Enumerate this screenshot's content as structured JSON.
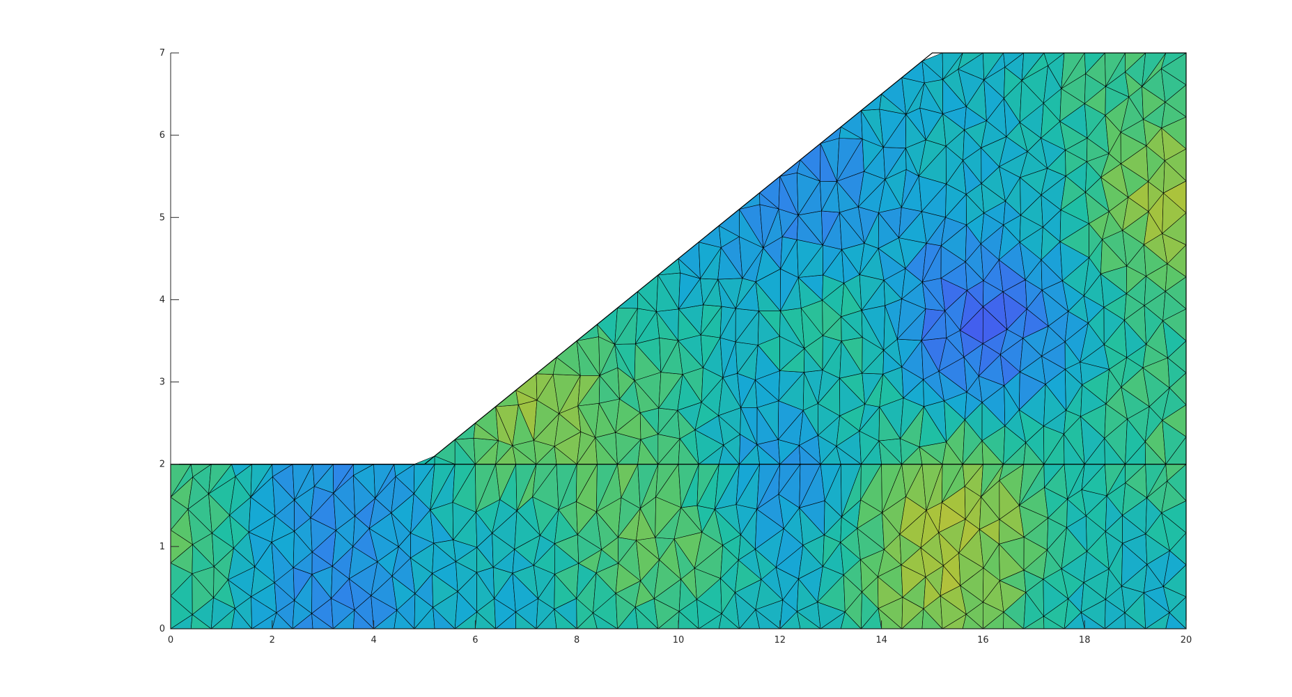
{
  "chart_data": {
    "type": "heatmap",
    "subtype": "triangulated-mesh",
    "title": "",
    "xlabel": "",
    "ylabel": "",
    "xlim": [
      0,
      20
    ],
    "ylim": [
      0,
      7
    ],
    "xticks": [
      0,
      2,
      4,
      6,
      8,
      10,
      12,
      14,
      16,
      18,
      20
    ],
    "yticks": [
      0,
      1,
      2,
      3,
      4,
      5,
      6,
      7
    ],
    "xtick_labels": [
      "0",
      "2",
      "4",
      "6",
      "8",
      "10",
      "12",
      "14",
      "16",
      "18",
      "20"
    ],
    "ytick_labels": [
      "0",
      "1",
      "2",
      "3",
      "4",
      "5",
      "6",
      "7"
    ],
    "grid": false,
    "colormap": "parula",
    "colormap_colors": [
      "#3e26a8",
      "#4a53f0",
      "#2e86e8",
      "#16a9d4",
      "#1fbfa4",
      "#5cc668",
      "#a8c33c",
      "#f0ba3c",
      "#f9fb15"
    ],
    "edge_color": "#000000",
    "domain_outline": [
      [
        0,
        0
      ],
      [
        20,
        0
      ],
      [
        20,
        7
      ],
      [
        15,
        7
      ],
      [
        5,
        2
      ],
      [
        0,
        2
      ]
    ],
    "layer_boundary_y": 2,
    "mesh_element_size": 0.4,
    "field_hotspots": [
      {
        "x": 2.8,
        "y": 1.85,
        "value": 0.22
      },
      {
        "x": 3.0,
        "y": 0.45,
        "value": 0.22
      },
      {
        "x": 0.25,
        "y": 1.3,
        "value": 0.72
      },
      {
        "x": 7.1,
        "y": 2.8,
        "value": 0.86
      },
      {
        "x": 9.6,
        "y": 1.2,
        "value": 0.75
      },
      {
        "x": 10.0,
        "y": 2.4,
        "value": 0.68
      },
      {
        "x": 12.3,
        "y": 5.2,
        "value": 0.18
      },
      {
        "x": 11.6,
        "y": 2.2,
        "value": 0.15
      },
      {
        "x": 15.7,
        "y": 3.6,
        "value": 0.04
      },
      {
        "x": 15.2,
        "y": 0.8,
        "value": 0.88
      },
      {
        "x": 15.5,
        "y": 1.6,
        "value": 0.8
      },
      {
        "x": 13.0,
        "y": 3.3,
        "value": 0.62
      },
      {
        "x": 19.8,
        "y": 5.2,
        "value": 0.9
      },
      {
        "x": 18.4,
        "y": 6.8,
        "value": 0.66
      },
      {
        "x": 19.8,
        "y": 2.5,
        "value": 0.65
      },
      {
        "x": 16.5,
        "y": 6.2,
        "value": 0.4
      }
    ],
    "field_base_value": 0.42
  }
}
